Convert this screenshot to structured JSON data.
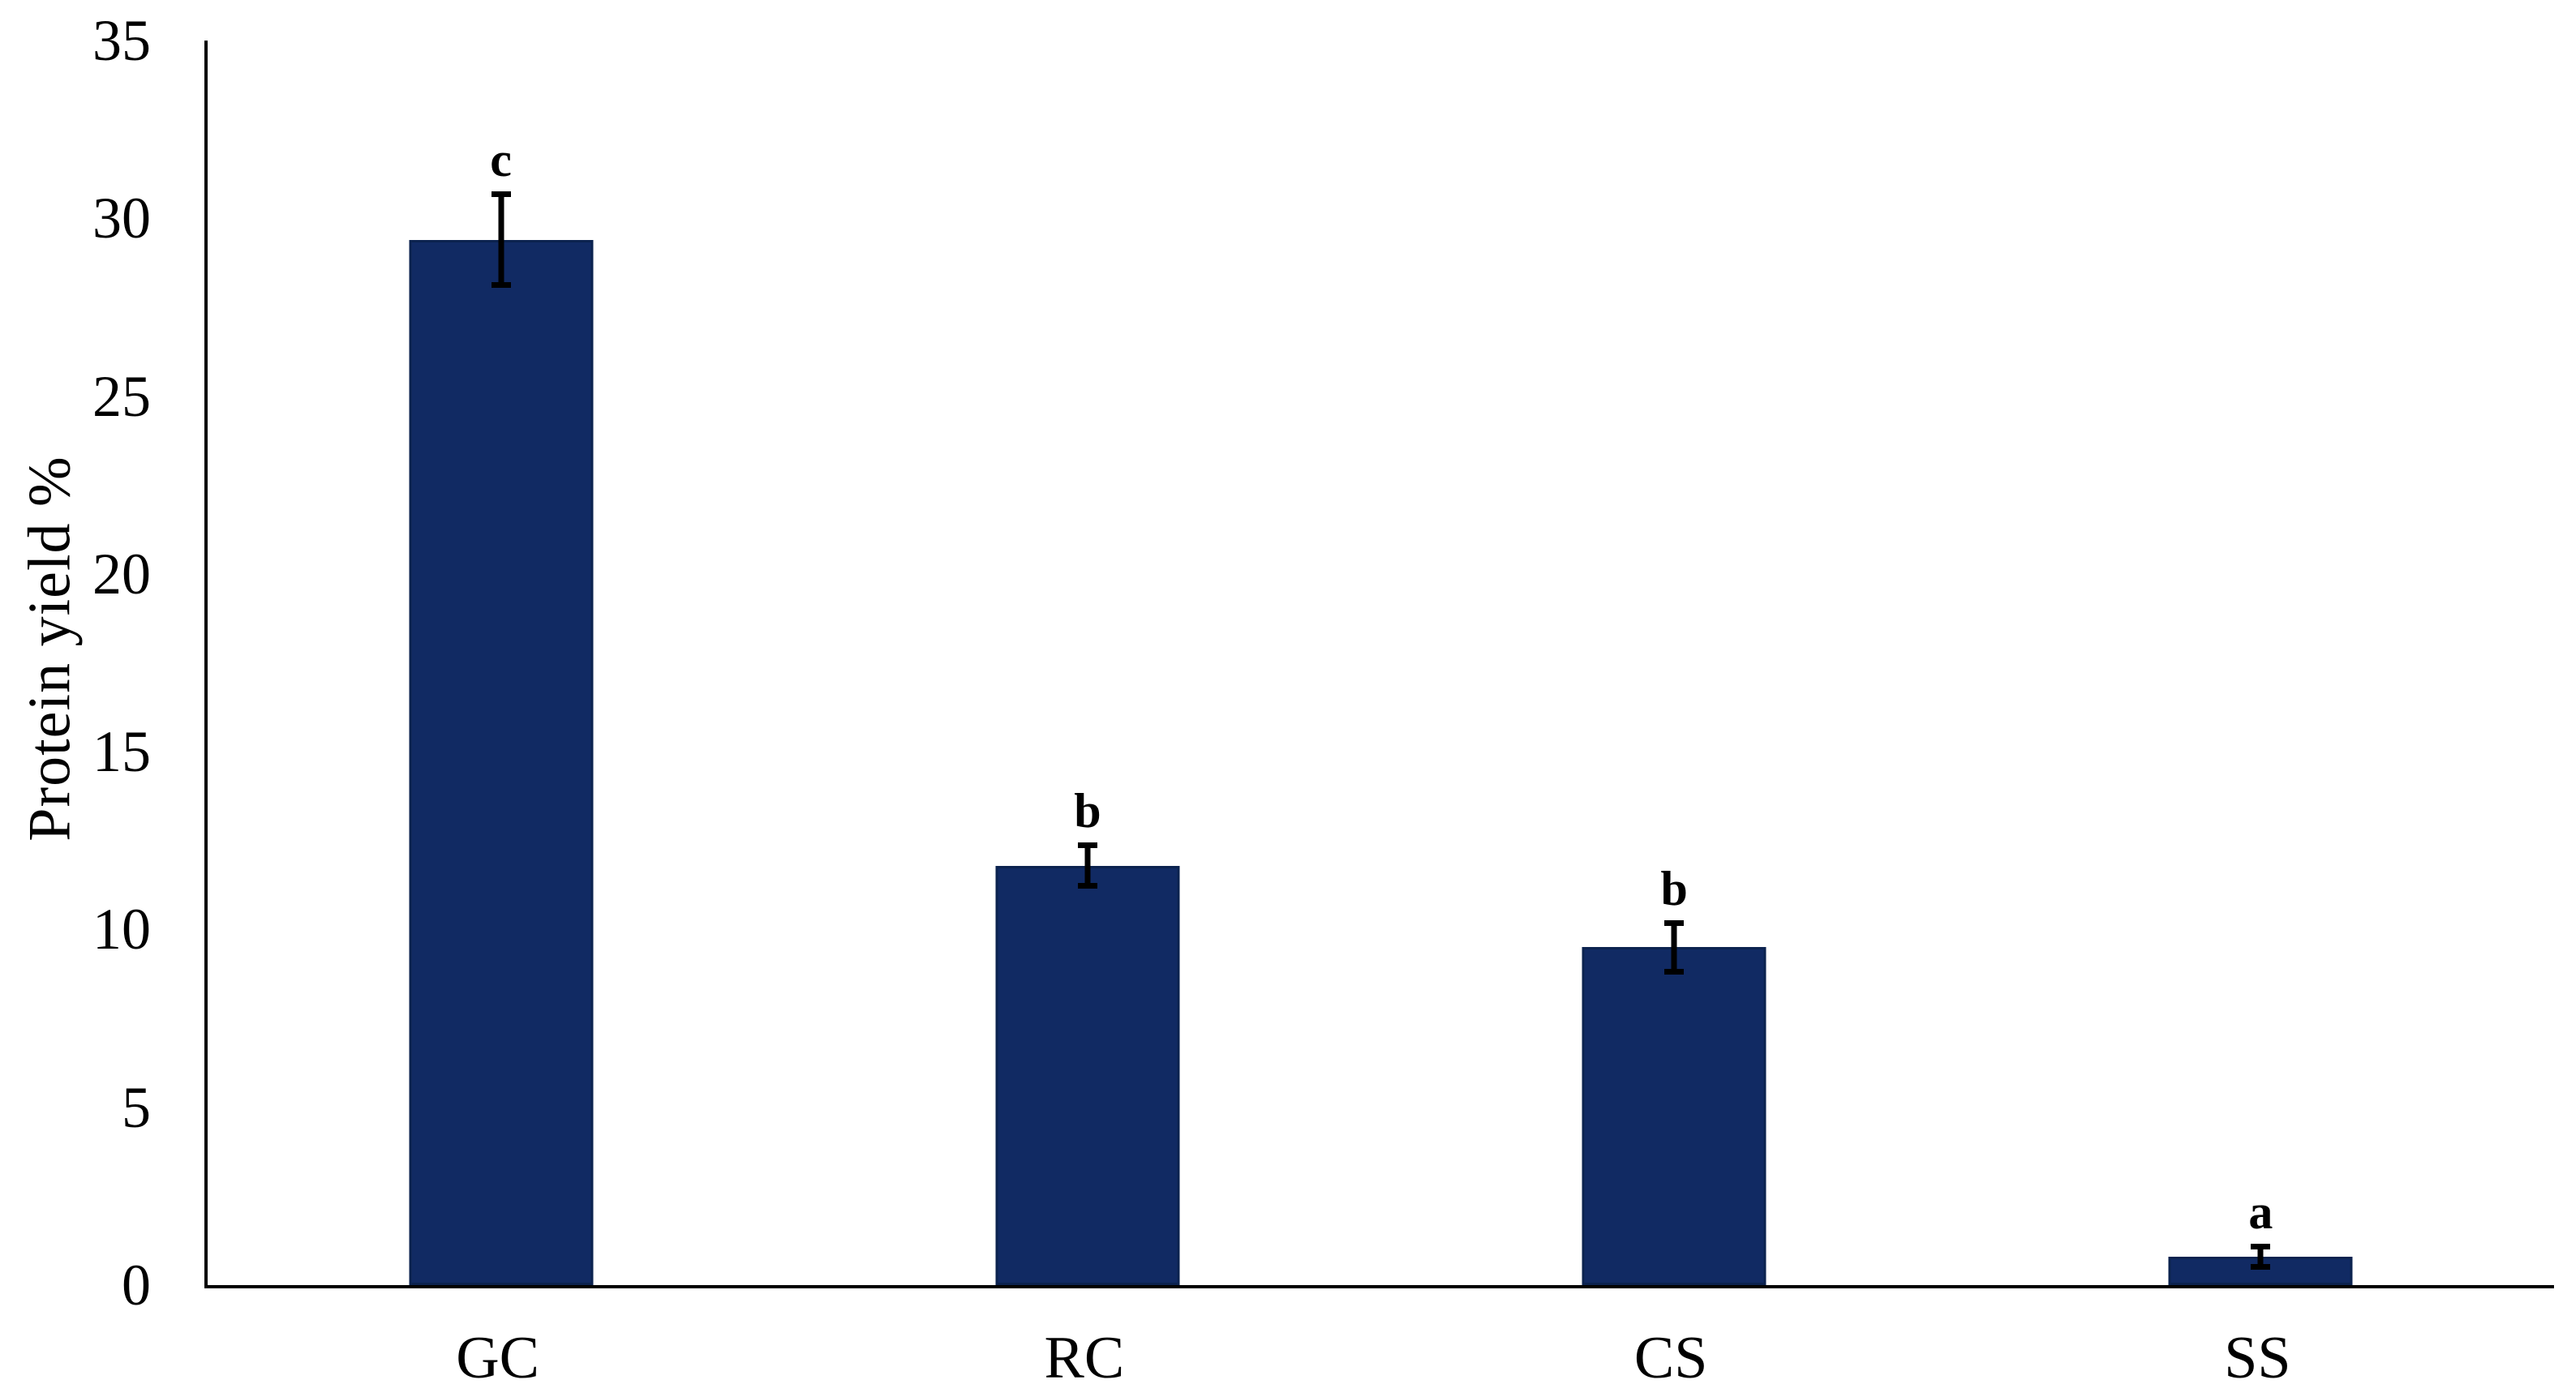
{
  "chart_data": {
    "type": "bar",
    "title": "",
    "xlabel": "",
    "ylabel": "Protein yield %",
    "categories": [
      "GC",
      "RC",
      "CS",
      "SS"
    ],
    "values": [
      29.4,
      11.8,
      9.5,
      0.8
    ],
    "error_bars": [
      1.2,
      0.5,
      0.6,
      0.2
    ],
    "significance_letters": [
      "c",
      "b",
      "b",
      "a"
    ],
    "ylim": [
      0,
      35
    ],
    "yticks": [
      0,
      5,
      10,
      15,
      20,
      25,
      30,
      35
    ],
    "grid": false,
    "legend": false,
    "bar_color": "#112a63",
    "bar_border_color": "#0c234f",
    "error_bar_color": "#000000",
    "axis_color": "#000000",
    "background_color": "#ffffff"
  }
}
